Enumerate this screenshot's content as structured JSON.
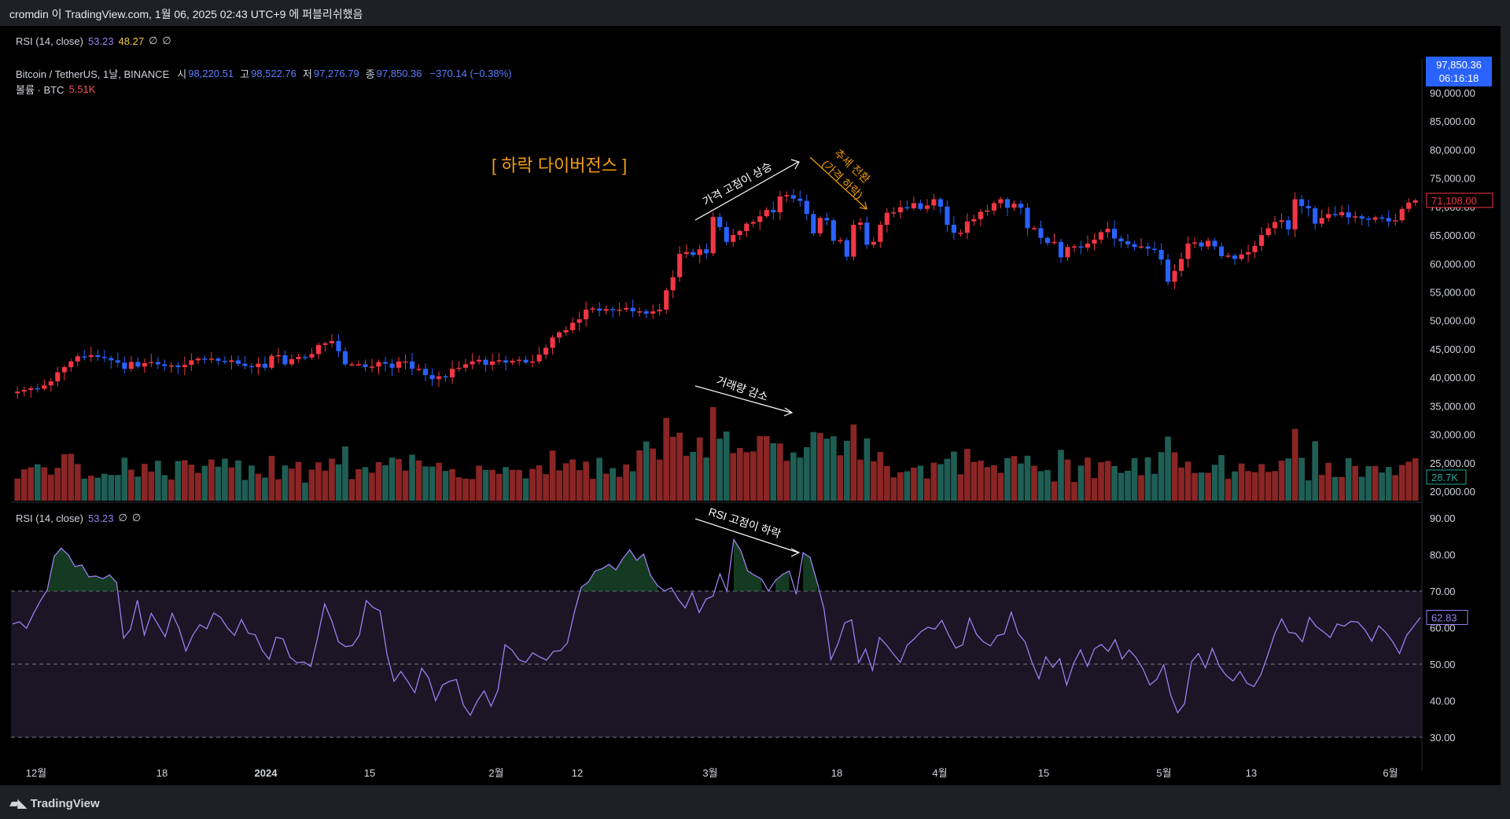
{
  "caption": "cromdin 이 TradingView.com, 1월 06, 2025 02:43 UTC+9 에 퍼블리쉬했음",
  "top_legend": {
    "label": "RSI (14, close)",
    "v1": "53.23",
    "v2": "48.27",
    "i1": "∅",
    "i2": "∅"
  },
  "symbol_legend": {
    "name": "Bitcoin / TetherUS, 1날, BINANCE",
    "o_label": "시",
    "o": "98,220.51",
    "h_label": "고",
    "h": "98,522.76",
    "l_label": "저",
    "l": "97,276.79",
    "c_label": "종",
    "c": "97,850.36",
    "chg": "−370.14 (−0.38%)"
  },
  "volume_legend": {
    "label": "볼륨 · BTC",
    "value": "5.51K"
  },
  "rsi_legend": {
    "label": "RSI (14, close)",
    "value": "53.23",
    "i1": "∅",
    "i2": "∅"
  },
  "price_badge": {
    "price": "97,850.36",
    "countdown": "06:16:18"
  },
  "price_axis": [
    "90,000.00",
    "85,000.00",
    "80,000.00",
    "75,000.00",
    "70,000.00",
    "65,000.00",
    "60,000.00",
    "55,000.00",
    "50,000.00",
    "45,000.00",
    "40,000.00",
    "35,000.00",
    "30,000.00",
    "25,000.00",
    "20,000.00"
  ],
  "last_price_tag": "71,108.00",
  "volume_tag": "28.7K",
  "rsi_axis": [
    "90.00",
    "80.00",
    "70.00",
    "60.00",
    "50.00",
    "40.00",
    "30.00"
  ],
  "rsi_tag": "62.83",
  "time_axis": [
    "12월",
    "18",
    "2024",
    "15",
    "2월",
    "12",
    "3월",
    "18",
    "4월",
    "15",
    "5월",
    "13",
    "6월"
  ],
  "annotations": {
    "title": "[ 하락 다이버전스 ]",
    "price_up": "가격 고점이 상승",
    "trend_switch_1": "추세 전환",
    "trend_switch_2": "(가격 하락)",
    "volume_down": "거래량 감소",
    "rsi_down": "RSI 고점이 하락"
  },
  "chart_data": {
    "type": "candlestick",
    "price_closes": [
      37.5,
      37.8,
      38.1,
      38.0,
      38.6,
      39.3,
      40.9,
      41.8,
      42.8,
      43.7,
      43.6,
      43.9,
      43.6,
      43.4,
      43.0,
      42.6,
      41.5,
      42.7,
      41.9,
      42.5,
      42.7,
      42.3,
      42.0,
      42.1,
      41.8,
      42.2,
      43.0,
      43.3,
      43.1,
      43.3,
      42.9,
      42.7,
      43.0,
      42.4,
      42.0,
      41.8,
      42.4,
      41.7,
      43.8,
      43.9,
      42.3,
      43.2,
      43.6,
      43.5,
      44.1,
      45.7,
      46.0,
      46.4,
      44.6,
      42.3,
      42.3,
      42.3,
      41.8,
      41.9,
      42.7,
      42.4,
      41.7,
      42.8,
      42.8,
      41.5,
      41.5,
      40.4,
      39.7,
      40.2,
      40.0,
      41.5,
      41.7,
      42.3,
      42.8,
      43.1,
      42.2,
      42.8,
      43.0,
      42.6,
      42.9,
      43.1,
      42.6,
      42.8,
      44.0,
      45.2,
      47.0,
      47.9,
      48.3,
      49.6,
      50.2,
      51.9,
      52.1,
      51.7,
      52.0,
      51.9,
      51.9,
      52.2,
      51.6,
      51.6,
      51.2,
      51.6,
      51.9,
      55.3,
      57.6,
      61.7,
      62.0,
      61.5,
      62.5,
      61.8,
      68.2,
      66.4,
      63.8,
      65.0,
      65.7,
      67.0,
      67.3,
      68.3,
      69.4,
      69.0,
      71.8,
      72.0,
      71.4,
      71.0,
      68.7,
      65.3,
      68.0,
      67.6,
      64.0,
      64.1,
      61.2,
      66.8,
      67.2,
      63.3,
      63.8,
      66.8,
      68.9,
      69.0,
      69.9,
      69.7,
      70.6,
      69.6,
      70.2,
      71.3,
      70.0,
      66.8,
      65.4,
      65.4,
      67.4,
      67.8,
      69.1,
      69.3,
      70.6,
      71.3,
      69.8,
      70.5,
      69.8,
      66.2,
      66.2,
      64.5,
      63.6,
      63.8,
      61.1,
      62.9,
      63.0,
      62.8,
      63.5,
      64.2,
      65.5,
      66.1,
      64.4,
      63.9,
      63.4,
      62.9,
      63.0,
      62.6,
      62.4,
      60.7,
      56.8,
      58.7,
      60.8,
      63.5,
      63.7,
      63.0,
      64.0,
      63.0,
      61.3,
      61.4,
      60.8,
      61.6,
      62.0,
      63.1,
      65.0,
      66.2,
      67.3,
      67.6,
      66.0,
      71.3,
      70.1,
      69.7,
      67.0,
      68.0,
      68.7,
      68.5,
      69.0,
      68.1,
      68.3,
      67.9,
      67.7,
      68.1,
      68.0,
      67.4,
      67.6,
      69.6,
      70.7,
      71.1
    ],
    "price_axis_range": [
      20000,
      90000
    ],
    "rsi_range": [
      30,
      90
    ],
    "rsi_levels": [
      70,
      50,
      30
    ],
    "rsi_values": [
      61,
      61.6,
      59.8,
      63.8,
      67.3,
      70.3,
      79.5,
      81.7,
      80.0,
      76.7,
      77.1,
      73.9,
      74.1,
      73.4,
      74.4,
      72.3,
      57.1,
      59.5,
      67.5,
      58.0,
      63.9,
      60.7,
      57.5,
      63.9,
      59.8,
      53.6,
      58.0,
      60.8,
      59.7,
      64.0,
      62.8,
      59.9,
      57.9,
      62.2,
      58.5,
      58.0,
      53.8,
      51.3,
      57.4,
      56.9,
      51.9,
      50.4,
      50.6,
      49.4,
      57.4,
      66.5,
      62.0,
      56.1,
      54.8,
      55.1,
      57.9,
      67.4,
      65.5,
      64.6,
      52.6,
      45.3,
      48.0,
      45.2,
      42.2,
      48.9,
      46.2,
      40.0,
      44.3,
      45.3,
      45.8,
      38.8,
      36.0,
      39.9,
      42.7,
      38.5,
      42.9,
      55.3,
      53.9,
      51.2,
      50.5,
      53.1,
      52.0,
      51.1,
      53.5,
      53.7,
      55.8,
      64.1,
      71.1,
      72.4,
      75.5,
      76.1,
      77.3,
      75.8,
      78.9,
      81.3,
      78.4,
      80.1,
      74.3,
      71.5,
      70.0,
      70.9,
      67.7,
      65.4,
      69.6,
      64.1,
      67.8,
      68.6,
      74.7,
      70.0,
      84.1,
      81.1,
      75.5,
      74.3,
      73.3,
      70.0,
      72.9,
      74.5,
      75.5,
      69.1,
      80.5,
      79.2,
      72.5,
      65.1,
      51.2,
      55.5,
      61.3,
      62.1,
      50.4,
      54.1,
      48.3,
      57.3,
      55.3,
      52.8,
      50.5,
      55.2,
      56.9,
      58.9,
      60.1,
      59.6,
      62.0,
      57.9,
      54.4,
      55.3,
      62.6,
      58.1,
      56.1,
      55.0,
      57.8,
      58.3,
      64.2,
      58.4,
      56.1,
      50.5,
      46.0,
      52.0,
      49.1,
      51.5,
      44.3,
      50.2,
      53.9,
      49.4,
      54.2,
      55.4,
      53.5,
      56.7,
      51.4,
      53.9,
      51.8,
      48.7,
      44.3,
      45.9,
      49.8,
      41.5,
      36.7,
      39.2,
      50.6,
      52.9,
      49.0,
      54.3,
      49.5,
      46.9,
      45.4,
      48.0,
      44.8,
      43.9,
      47.1,
      52.5,
      58.3,
      62.4,
      58.7,
      58.4,
      56.1,
      62.8,
      60.3,
      58.9,
      57.3,
      61.0,
      60.4,
      61.7,
      61.5,
      59.4,
      56.3,
      60.5,
      58.7,
      56.2,
      52.9,
      57.8,
      60.3,
      62.8
    ],
    "volume_range_k": [
      0,
      100
    ]
  },
  "brand": {
    "name": "TradingView"
  },
  "colors": {
    "up": "#f23645",
    "down": "#2962ff",
    "vol_up": "#8a2525",
    "vol_down": "#1f5e54",
    "rsi": "#9c7ff0",
    "annotation": "#f59e0b"
  }
}
